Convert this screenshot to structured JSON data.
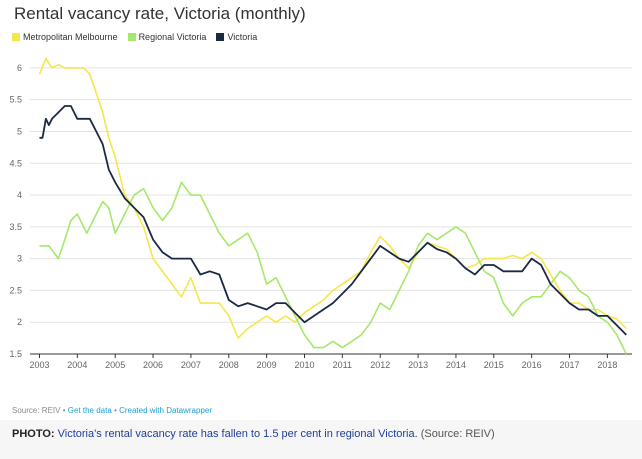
{
  "chart_data": {
    "type": "line",
    "title": "Rental vacancy rate, Victoria (monthly)",
    "xlabel": "",
    "ylabel": "",
    "x_ticks": [
      "2003",
      "2004",
      "2005",
      "2006",
      "2007",
      "2008",
      "2009",
      "2010",
      "2011",
      "2012",
      "2013",
      "2014",
      "2015",
      "2016",
      "2017",
      "2018"
    ],
    "y_ticks": [
      1.5,
      2,
      2.5,
      3,
      3.5,
      4,
      4.5,
      5,
      5.5,
      6
    ],
    "y_tick_labels": [
      "1.5",
      "2",
      "2.5",
      "3",
      "3.5",
      "4",
      "4.5",
      "5",
      "5.5",
      "6"
    ],
    "xlim": [
      2002.75,
      2018.65
    ],
    "ylim": [
      1.5,
      6.25
    ],
    "grid": true,
    "legend_position": "top-left",
    "series": [
      {
        "name": "Metropolitan Melbourne",
        "color": "#f5e74a",
        "x": [
          2003.0,
          2003.17,
          2003.33,
          2003.5,
          2003.67,
          2003.83,
          2004.0,
          2004.17,
          2004.33,
          2004.5,
          2004.67,
          2004.83,
          2005.0,
          2005.25,
          2005.5,
          2005.75,
          2006.0,
          2006.25,
          2006.5,
          2006.75,
          2007.0,
          2007.25,
          2007.5,
          2007.75,
          2008.0,
          2008.25,
          2008.5,
          2008.75,
          2009.0,
          2009.25,
          2009.5,
          2009.75,
          2010.0,
          2010.25,
          2010.5,
          2010.75,
          2011.0,
          2011.25,
          2011.5,
          2011.75,
          2012.0,
          2012.25,
          2012.5,
          2012.75,
          2013.0,
          2013.25,
          2013.5,
          2013.75,
          2014.0,
          2014.25,
          2014.5,
          2014.75,
          2015.0,
          2015.25,
          2015.5,
          2015.75,
          2016.0,
          2016.25,
          2016.5,
          2016.75,
          2017.0,
          2017.25,
          2017.5,
          2017.75,
          2018.0,
          2018.25,
          2018.5
        ],
        "values": [
          5.9,
          6.15,
          6.0,
          6.05,
          6.0,
          6.0,
          6.0,
          6.0,
          5.9,
          5.6,
          5.3,
          4.9,
          4.6,
          4.0,
          3.8,
          3.5,
          3.0,
          2.8,
          2.6,
          2.4,
          2.7,
          2.3,
          2.3,
          2.3,
          2.1,
          1.75,
          1.9,
          2.0,
          2.1,
          2.0,
          2.1,
          2.0,
          2.15,
          2.25,
          2.35,
          2.5,
          2.6,
          2.7,
          2.8,
          3.1,
          3.35,
          3.2,
          3.0,
          2.85,
          3.1,
          3.25,
          3.2,
          3.15,
          3.0,
          2.85,
          2.9,
          3.0,
          3.0,
          3.0,
          3.05,
          3.0,
          3.1,
          3.0,
          2.75,
          2.5,
          2.3,
          2.3,
          2.2,
          2.2,
          2.1,
          2.05,
          1.9
        ]
      },
      {
        "name": "Regional Victoria",
        "color": "#a6e86b",
        "x": [
          2003.0,
          2003.25,
          2003.5,
          2003.67,
          2003.83,
          2004.0,
          2004.25,
          2004.5,
          2004.67,
          2004.83,
          2005.0,
          2005.25,
          2005.5,
          2005.75,
          2006.0,
          2006.25,
          2006.5,
          2006.75,
          2007.0,
          2007.25,
          2007.5,
          2007.75,
          2008.0,
          2008.25,
          2008.5,
          2008.75,
          2009.0,
          2009.25,
          2009.5,
          2009.75,
          2010.0,
          2010.25,
          2010.5,
          2010.75,
          2011.0,
          2011.25,
          2011.5,
          2011.75,
          2012.0,
          2012.25,
          2012.5,
          2012.75,
          2013.0,
          2013.25,
          2013.5,
          2013.75,
          2014.0,
          2014.25,
          2014.5,
          2014.75,
          2015.0,
          2015.25,
          2015.5,
          2015.75,
          2016.0,
          2016.25,
          2016.5,
          2016.75,
          2017.0,
          2017.25,
          2017.5,
          2017.75,
          2018.0,
          2018.25,
          2018.5
        ],
        "values": [
          3.2,
          3.2,
          3.0,
          3.3,
          3.6,
          3.7,
          3.4,
          3.7,
          3.9,
          3.8,
          3.4,
          3.7,
          4.0,
          4.1,
          3.8,
          3.6,
          3.8,
          4.2,
          4.0,
          4.0,
          3.7,
          3.4,
          3.2,
          3.3,
          3.4,
          3.1,
          2.6,
          2.7,
          2.4,
          2.1,
          1.8,
          1.6,
          1.6,
          1.7,
          1.6,
          1.7,
          1.8,
          2.0,
          2.3,
          2.2,
          2.5,
          2.8,
          3.2,
          3.4,
          3.3,
          3.4,
          3.5,
          3.4,
          3.1,
          2.8,
          2.7,
          2.3,
          2.1,
          2.3,
          2.4,
          2.4,
          2.6,
          2.8,
          2.7,
          2.5,
          2.4,
          2.1,
          2.0,
          1.8,
          1.5
        ]
      },
      {
        "name": "Victoria",
        "color": "#1b2a41",
        "x": [
          2003.0,
          2003.08,
          2003.17,
          2003.25,
          2003.33,
          2003.5,
          2003.67,
          2003.83,
          2004.0,
          2004.17,
          2004.33,
          2004.5,
          2004.67,
          2004.83,
          2005.0,
          2005.25,
          2005.5,
          2005.75,
          2006.0,
          2006.25,
          2006.5,
          2006.75,
          2007.0,
          2007.25,
          2007.5,
          2007.75,
          2008.0,
          2008.25,
          2008.5,
          2008.75,
          2009.0,
          2009.25,
          2009.5,
          2009.75,
          2010.0,
          2010.25,
          2010.5,
          2010.75,
          2011.0,
          2011.25,
          2011.5,
          2011.75,
          2012.0,
          2012.25,
          2012.5,
          2012.75,
          2013.0,
          2013.25,
          2013.5,
          2013.75,
          2014.0,
          2014.25,
          2014.5,
          2014.75,
          2015.0,
          2015.25,
          2015.5,
          2015.75,
          2016.0,
          2016.25,
          2016.5,
          2016.75,
          2017.0,
          2017.25,
          2017.5,
          2017.75,
          2018.0,
          2018.25,
          2018.5
        ],
        "values": [
          4.9,
          4.9,
          5.2,
          5.1,
          5.2,
          5.3,
          5.4,
          5.4,
          5.2,
          5.2,
          5.2,
          5.0,
          4.8,
          4.4,
          4.2,
          3.95,
          3.8,
          3.65,
          3.3,
          3.1,
          3.0,
          3.0,
          3.0,
          2.75,
          2.8,
          2.75,
          2.35,
          2.25,
          2.3,
          2.25,
          2.2,
          2.3,
          2.3,
          2.15,
          2.0,
          2.1,
          2.2,
          2.3,
          2.45,
          2.6,
          2.8,
          3.0,
          3.2,
          3.1,
          3.0,
          2.95,
          3.1,
          3.25,
          3.15,
          3.1,
          3.0,
          2.85,
          2.75,
          2.9,
          2.9,
          2.8,
          2.8,
          2.8,
          3.0,
          2.9,
          2.6,
          2.45,
          2.3,
          2.2,
          2.2,
          2.1,
          2.1,
          1.95,
          1.8
        ]
      }
    ]
  },
  "source": {
    "prefix": "Source: REIV",
    "sep": "•",
    "get_data": "Get the data",
    "created_with": "Created with Datawrapper"
  },
  "caption": {
    "label": "PHOTO:",
    "text": "Victoria's rental vacancy rate has fallen to 1.5 per cent in regional Victoria.",
    "credit": "(Source: REIV)"
  }
}
